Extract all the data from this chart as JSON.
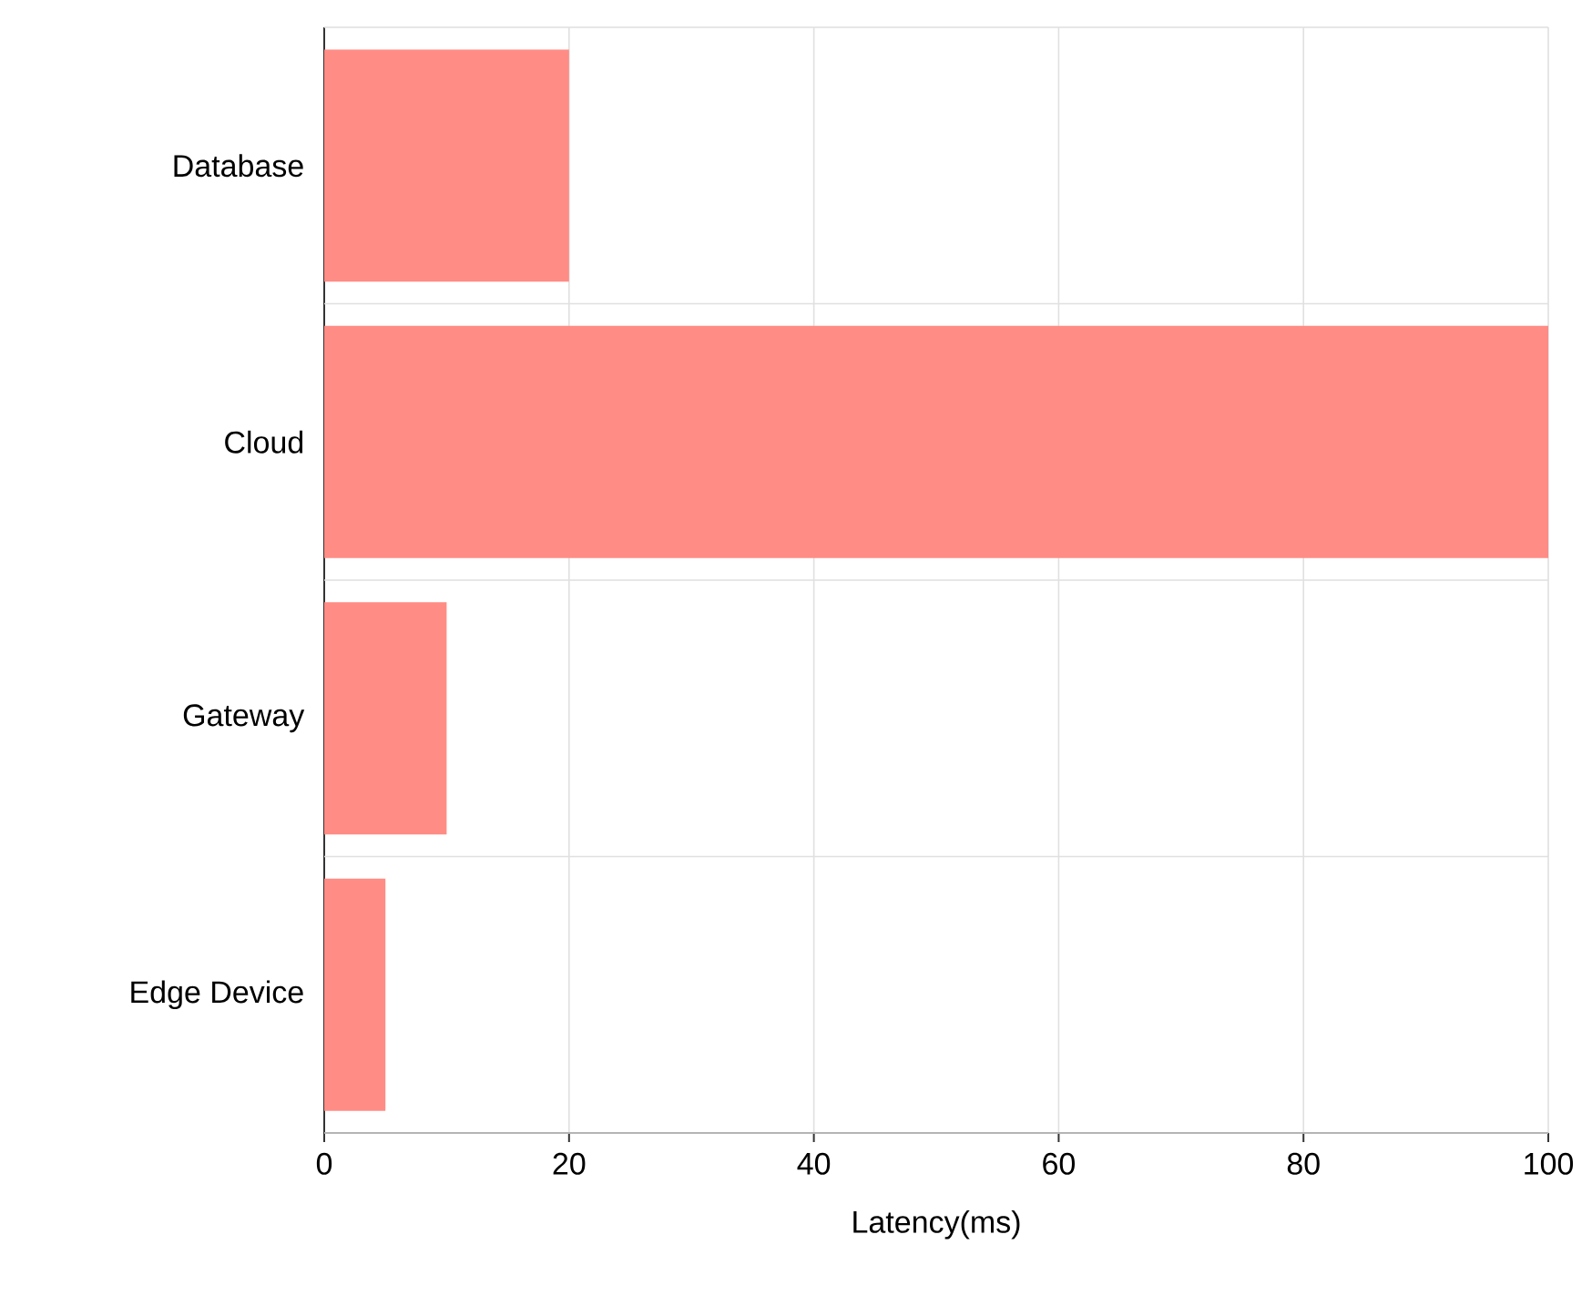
{
  "chart_data": {
    "type": "bar",
    "orientation": "horizontal",
    "xlabel": "Latency(ms)",
    "categories": [
      "Database",
      "Cloud",
      "Gateway",
      "Edge Device"
    ],
    "values": [
      20,
      100,
      10,
      5
    ],
    "color": "#ff8c85",
    "xlim": [
      0,
      100
    ],
    "xticks": [
      0,
      20,
      40,
      60,
      80,
      100
    ],
    "grid": true
  }
}
